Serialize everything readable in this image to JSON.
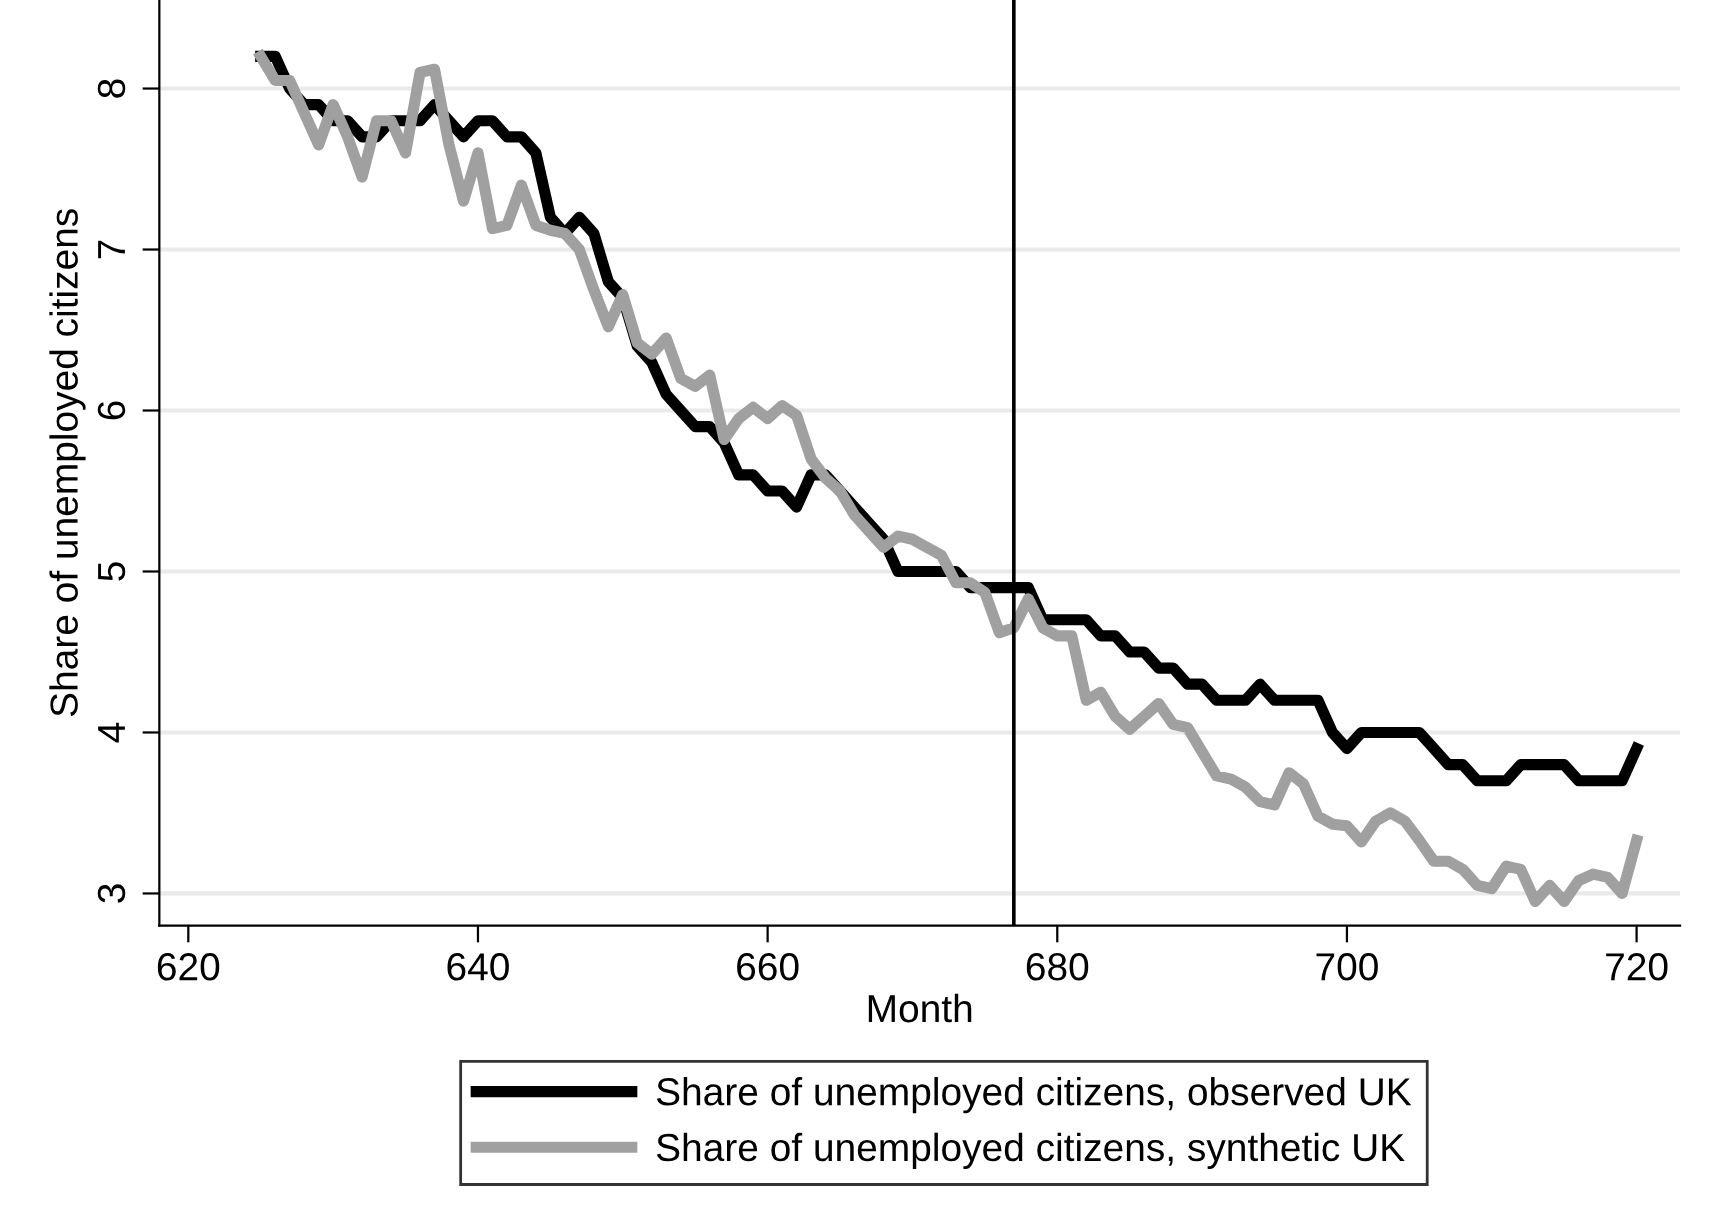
{
  "chart_data": {
    "type": "line",
    "xlabel": "Month",
    "ylabel": "Share of unemployed citizens",
    "x": [
      625,
      626,
      627,
      628,
      629,
      630,
      631,
      632,
      633,
      634,
      635,
      636,
      637,
      638,
      639,
      640,
      641,
      642,
      643,
      644,
      645,
      646,
      647,
      648,
      649,
      650,
      651,
      652,
      653,
      654,
      655,
      656,
      657,
      658,
      659,
      660,
      661,
      662,
      663,
      664,
      665,
      666,
      667,
      668,
      669,
      670,
      671,
      672,
      673,
      674,
      675,
      676,
      677,
      678,
      679,
      680,
      681,
      682,
      683,
      684,
      685,
      686,
      687,
      688,
      689,
      690,
      691,
      692,
      693,
      694,
      695,
      696,
      697,
      698,
      699,
      700,
      701,
      702,
      703,
      704,
      705,
      706,
      707,
      708,
      709,
      710,
      711,
      712,
      713,
      714,
      715,
      716,
      717,
      718,
      719,
      720
    ],
    "series": [
      {
        "name": "Share of unemployed citizens, observed UK",
        "color": "#000000",
        "values": [
          8.2,
          8.2,
          8.0,
          7.9,
          7.9,
          7.8,
          7.8,
          7.7,
          7.7,
          7.8,
          7.8,
          7.8,
          7.9,
          7.8,
          7.7,
          7.8,
          7.8,
          7.7,
          7.7,
          7.6,
          7.2,
          7.1,
          7.2,
          7.1,
          6.8,
          6.7,
          6.4,
          6.3,
          6.1,
          6.0,
          5.9,
          5.9,
          5.8,
          5.6,
          5.6,
          5.5,
          5.5,
          5.4,
          5.6,
          5.6,
          5.5,
          5.4,
          5.3,
          5.2,
          5.0,
          5.0,
          5.0,
          5.0,
          5.0,
          4.9,
          4.9,
          4.9,
          4.9,
          4.9,
          4.7,
          4.7,
          4.7,
          4.7,
          4.6,
          4.6,
          4.5,
          4.5,
          4.4,
          4.4,
          4.3,
          4.3,
          4.2,
          4.2,
          4.2,
          4.3,
          4.2,
          4.2,
          4.2,
          4.2,
          4.0,
          3.9,
          4.0,
          4.0,
          4.0,
          4.0,
          4.0,
          3.9,
          3.8,
          3.8,
          3.7,
          3.7,
          3.7,
          3.8,
          3.8,
          3.8,
          3.8,
          3.7,
          3.7,
          3.7,
          3.7,
          3.9
        ]
      },
      {
        "name": "Share of unemployed citizens, synthetic UK",
        "color": "#a0a0a0",
        "values": [
          8.2,
          8.05,
          8.05,
          7.85,
          7.65,
          7.9,
          7.7,
          7.45,
          7.8,
          7.8,
          7.6,
          8.1,
          8.12,
          7.65,
          7.3,
          7.6,
          7.13,
          7.15,
          7.4,
          7.15,
          7.12,
          7.1,
          7.0,
          6.75,
          6.52,
          6.72,
          6.42,
          6.35,
          6.45,
          6.2,
          6.15,
          6.22,
          5.82,
          5.95,
          6.02,
          5.95,
          6.03,
          5.97,
          5.7,
          5.58,
          5.5,
          5.35,
          5.25,
          5.15,
          5.22,
          5.2,
          5.15,
          5.1,
          4.93,
          4.93,
          4.87,
          4.62,
          4.65,
          4.83,
          4.65,
          4.6,
          4.6,
          4.2,
          4.25,
          4.1,
          4.02,
          4.1,
          4.18,
          4.05,
          4.03,
          3.88,
          3.73,
          3.71,
          3.66,
          3.57,
          3.55,
          3.75,
          3.68,
          3.48,
          3.43,
          3.42,
          3.32,
          3.45,
          3.5,
          3.45,
          3.33,
          3.2,
          3.2,
          3.15,
          3.05,
          3.03,
          3.17,
          3.15,
          2.95,
          3.05,
          2.95,
          3.08,
          3.12,
          3.1,
          3.0,
          3.33
        ]
      }
    ],
    "xlim": [
      618,
      723
    ],
    "ylim": [
      2.8,
      8.55
    ],
    "xticks": [
      620,
      640,
      660,
      680,
      700,
      720
    ],
    "yticks": [
      3,
      4,
      5,
      6,
      7,
      8
    ],
    "ref_lines": [
      {
        "axis": "x",
        "value": 677,
        "color": "#000000"
      }
    ],
    "grid": "y",
    "legend": "bottom",
    "line_style": "solid"
  }
}
